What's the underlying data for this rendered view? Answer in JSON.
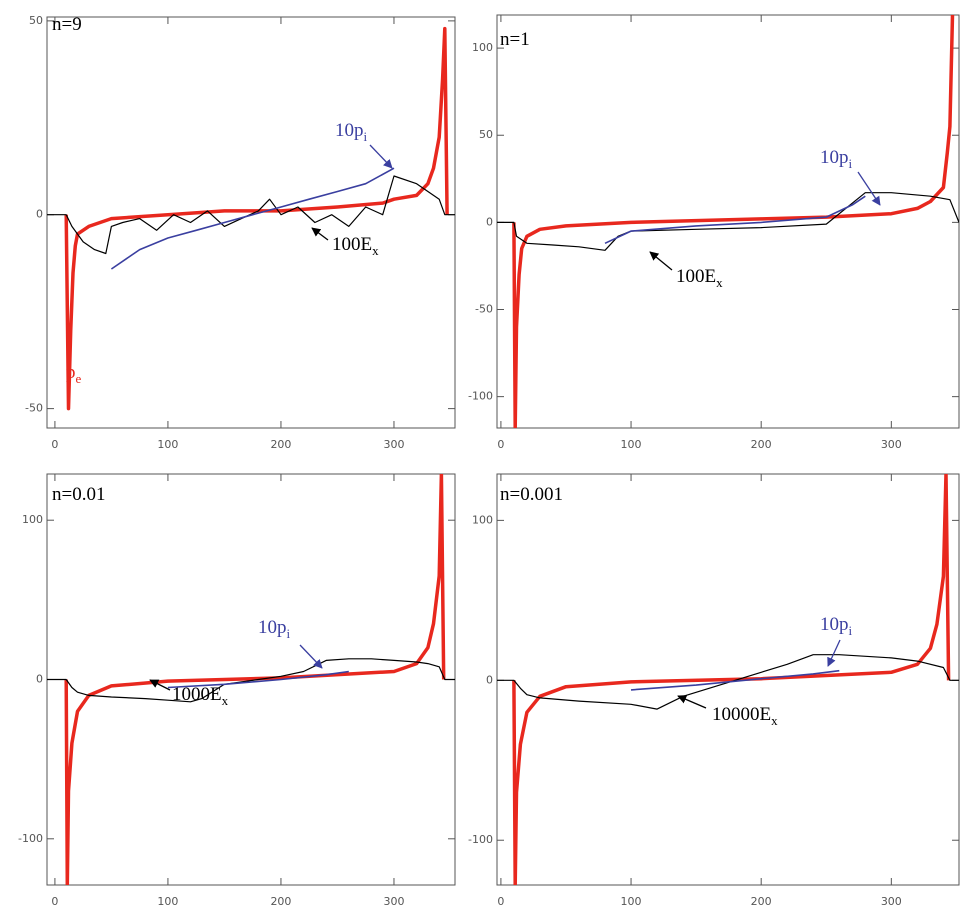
{
  "chart_data": [
    {
      "type": "line",
      "label": "n=9",
      "xlim": [
        -7,
        354
      ],
      "ylim": [
        -55,
        51
      ],
      "xticks": [
        0,
        100,
        200,
        300
      ],
      "yticks": [
        -50,
        0,
        50
      ],
      "series": [
        {
          "color": "#e8281e",
          "x": [
            10,
            12,
            14,
            16,
            18,
            20,
            30,
            50,
            100,
            150,
            200,
            250,
            290,
            300,
            320,
            330,
            335,
            340,
            343,
            345,
            347
          ],
          "values": [
            0,
            -50,
            -30,
            -15,
            -8,
            -5,
            -3,
            -1,
            0,
            1,
            1,
            2,
            3,
            4,
            5,
            8,
            12,
            20,
            35,
            48,
            0
          ]
        },
        {
          "color": "#000000",
          "x": [
            -7,
            10,
            15,
            25,
            35,
            45,
            50,
            60,
            75,
            90,
            105,
            120,
            135,
            150,
            165,
            180,
            190,
            200,
            215,
            230,
            245,
            260,
            275,
            290,
            295,
            300,
            320,
            340,
            345,
            354
          ],
          "values": [
            0,
            0,
            -3,
            -7,
            -9,
            -10,
            -3,
            -2,
            -1,
            -4,
            0,
            -2,
            1,
            -3,
            -1,
            1,
            4,
            0,
            2,
            -2,
            0,
            -3,
            2,
            0,
            5,
            10,
            8,
            4,
            0,
            0
          ]
        },
        {
          "color": "#3a3fa0",
          "x": [
            50,
            75,
            100,
            125,
            150,
            175,
            200,
            225,
            250,
            275,
            300
          ],
          "values": [
            -14,
            -9,
            -6,
            -4,
            -2,
            0,
            2,
            4,
            6,
            8,
            12
          ]
        }
      ],
      "annotations": [
        {
          "text": "10p",
          "sub": "i",
          "color": "#3a3fa0"
        },
        {
          "text": "100E",
          "sub": "x",
          "color": "#000000"
        },
        {
          "text": "p",
          "sub": "e",
          "color": "#e8281e"
        }
      ]
    },
    {
      "type": "line",
      "label": "n=1",
      "xlim": [
        -3,
        352
      ],
      "ylim": [
        -118,
        119
      ],
      "xticks": [
        0,
        100,
        200,
        300
      ],
      "yticks": [
        -100,
        -50,
        0,
        50,
        100
      ],
      "series": [
        {
          "color": "#e8281e",
          "x": [
            10,
            11,
            12,
            14,
            16,
            20,
            30,
            50,
            100,
            150,
            200,
            250,
            300,
            320,
            330,
            340,
            343,
            345,
            347
          ],
          "values": [
            0,
            -118,
            -60,
            -30,
            -15,
            -8,
            -4,
            -2,
            0,
            1,
            2,
            3,
            5,
            8,
            12,
            20,
            40,
            55,
            119
          ]
        },
        {
          "color": "#000000",
          "x": [
            -3,
            10,
            12,
            20,
            40,
            60,
            80,
            85,
            90,
            100,
            150,
            200,
            250,
            280,
            300,
            330,
            345,
            352
          ],
          "values": [
            0,
            0,
            -8,
            -12,
            -13,
            -14,
            -16,
            -12,
            -8,
            -5,
            -4,
            -3,
            -1,
            17,
            17,
            15,
            13,
            0
          ]
        },
        {
          "color": "#3a3fa0",
          "x": [
            80,
            100,
            150,
            200,
            250,
            270,
            280
          ],
          "values": [
            -12,
            -5,
            -2,
            0,
            3,
            10,
            15
          ]
        }
      ],
      "annotations": [
        {
          "text": "10p",
          "sub": "i",
          "color": "#3a3fa0"
        },
        {
          "text": "100E",
          "sub": "x",
          "color": "#000000"
        }
      ]
    },
    {
      "type": "line",
      "label": "n=0.01",
      "xlim": [
        -7,
        354
      ],
      "ylim": [
        -129,
        129
      ],
      "xticks": [
        0,
        100,
        200,
        300
      ],
      "yticks": [
        -100,
        0,
        100
      ],
      "series": [
        {
          "color": "#e8281e",
          "x": [
            10,
            11,
            12,
            15,
            20,
            30,
            50,
            100,
            200,
            300,
            320,
            330,
            335,
            340,
            342,
            344
          ],
          "values": [
            0,
            -129,
            -70,
            -40,
            -20,
            -10,
            -4,
            -1,
            1,
            5,
            10,
            20,
            35,
            65,
            129,
            0
          ]
        },
        {
          "color": "#000000",
          "x": [
            -7,
            10,
            15,
            20,
            30,
            50,
            80,
            100,
            120,
            130,
            150,
            180,
            200,
            220,
            240,
            260,
            280,
            300,
            320,
            330,
            340,
            345,
            354
          ],
          "values": [
            0,
            0,
            -5,
            -8,
            -10,
            -11,
            -12,
            -13,
            -14,
            -12,
            -3,
            0,
            2,
            5,
            12,
            13,
            13,
            12,
            11,
            10,
            8,
            0,
            0
          ]
        },
        {
          "color": "#3a3fa0",
          "x": [
            100,
            150,
            200,
            240,
            260
          ],
          "values": [
            -5,
            -3,
            0,
            3,
            5
          ]
        }
      ],
      "annotations": [
        {
          "text": "10p",
          "sub": "i",
          "color": "#3a3fa0"
        },
        {
          "text": "1000E",
          "sub": "x",
          "color": "#000000"
        }
      ]
    },
    {
      "type": "line",
      "label": "n=0.001",
      "xlim": [
        -3,
        352
      ],
      "ylim": [
        -128,
        129
      ],
      "xticks": [
        0,
        100,
        200,
        300
      ],
      "yticks": [
        -100,
        0,
        100
      ],
      "series": [
        {
          "color": "#e8281e",
          "x": [
            10,
            11,
            12,
            15,
            20,
            30,
            50,
            100,
            200,
            300,
            320,
            330,
            335,
            340,
            342,
            344
          ],
          "values": [
            0,
            -128,
            -70,
            -40,
            -20,
            -10,
            -4,
            -1,
            1,
            5,
            10,
            20,
            35,
            65,
            129,
            0
          ]
        },
        {
          "color": "#000000",
          "x": [
            -3,
            10,
            15,
            20,
            30,
            60,
            100,
            120,
            140,
            160,
            180,
            200,
            220,
            240,
            260,
            300,
            320,
            340,
            345,
            352
          ],
          "values": [
            0,
            0,
            -5,
            -9,
            -11,
            -13,
            -15,
            -18,
            -10,
            -5,
            0,
            5,
            10,
            16,
            16,
            14,
            12,
            8,
            0,
            0
          ]
        },
        {
          "color": "#3a3fa0",
          "x": [
            100,
            150,
            200,
            240,
            260
          ],
          "values": [
            -6,
            -3,
            1,
            4,
            6
          ]
        }
      ],
      "annotations": [
        {
          "text": "10p",
          "sub": "i",
          "color": "#3a3fa0"
        },
        {
          "text": "10000E",
          "sub": "x",
          "color": "#000000"
        }
      ]
    }
  ]
}
